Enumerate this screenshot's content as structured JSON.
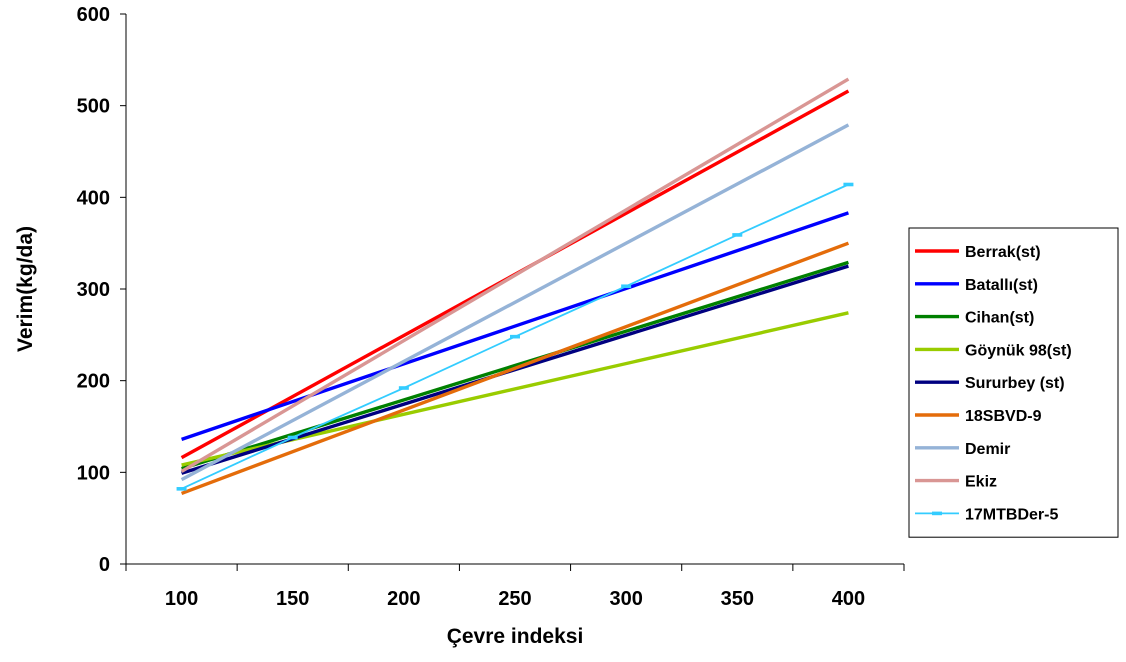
{
  "chart_data": {
    "type": "line",
    "title": "",
    "xlabel": "Çevre indeksi",
    "ylabel": "Verim(kg/da)",
    "xlim": [
      75,
      425
    ],
    "ylim": [
      0,
      600
    ],
    "x_ticks": [
      100,
      150,
      200,
      250,
      300,
      350,
      400
    ],
    "y_ticks": [
      0,
      100,
      200,
      300,
      400,
      500,
      600
    ],
    "grid": false,
    "legend_position": "right",
    "series": [
      {
        "name": "Berrak(st)",
        "color": "#ff0000",
        "x": [
          100,
          400
        ],
        "y": [
          116,
          516
        ],
        "markers": false
      },
      {
        "name": "Batallı(st)",
        "color": "#0000ff",
        "x": [
          100,
          400
        ],
        "y": [
          136,
          383
        ],
        "markers": false
      },
      {
        "name": "Cihan(st)",
        "color": "#008000",
        "x": [
          100,
          400
        ],
        "y": [
          104,
          329
        ],
        "markers": false
      },
      {
        "name": "Göynük 98(st)",
        "color": "#99cc00",
        "x": [
          100,
          400
        ],
        "y": [
          108,
          274
        ],
        "markers": false
      },
      {
        "name": "Sururbey (st)",
        "color": "#000080",
        "x": [
          100,
          400
        ],
        "y": [
          99,
          325
        ],
        "markers": false
      },
      {
        "name": "18SBVD-9",
        "color": "#e46c0a",
        "x": [
          100,
          400
        ],
        "y": [
          77,
          350
        ],
        "markers": false
      },
      {
        "name": " Demir",
        "color": "#95b3d7",
        "x": [
          100,
          400
        ],
        "y": [
          92,
          479
        ],
        "markers": false
      },
      {
        "name": "Ekiz",
        "color": "#d99694",
        "x": [
          100,
          400
        ],
        "y": [
          101,
          529
        ],
        "markers": false
      },
      {
        "name": "17MTBDer-5",
        "color": "#33ccff",
        "x": [
          100,
          150,
          200,
          250,
          300,
          350,
          400
        ],
        "y": [
          82,
          138,
          192,
          248,
          303,
          359,
          414
        ],
        "markers": true
      }
    ]
  }
}
